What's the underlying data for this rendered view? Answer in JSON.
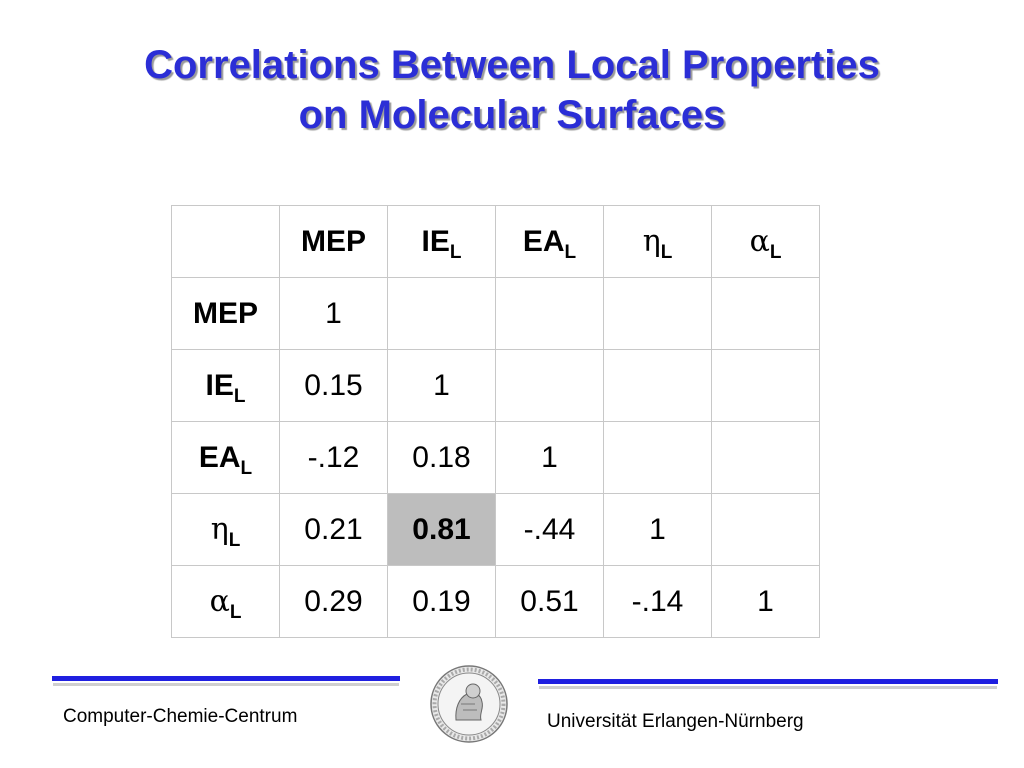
{
  "title": {
    "line1": "Correlations Between Local Properties",
    "line2": "on Molecular Surfaces"
  },
  "table": {
    "headers": [
      {
        "base": "",
        "sub": ""
      },
      {
        "base": "MEP",
        "sub": ""
      },
      {
        "base": "IE",
        "sub": "L"
      },
      {
        "base": "EA",
        "sub": "L"
      },
      {
        "base": "η",
        "sub": "L"
      },
      {
        "base": "α",
        "sub": "L"
      }
    ],
    "rows": [
      {
        "label": {
          "base": "MEP",
          "sub": ""
        },
        "cells": [
          "1",
          "",
          "",
          "",
          ""
        ]
      },
      {
        "label": {
          "base": "IE",
          "sub": "L"
        },
        "cells": [
          "0.15",
          "1",
          "",
          "",
          ""
        ]
      },
      {
        "label": {
          "base": "EA",
          "sub": "L"
        },
        "cells": [
          "-.12",
          "0.18",
          "1",
          "",
          ""
        ]
      },
      {
        "label": {
          "base": "η",
          "sub": "L"
        },
        "cells": [
          "0.21",
          "0.81",
          "-.44",
          "1",
          ""
        ]
      },
      {
        "label": {
          "base": "α",
          "sub": "L"
        },
        "cells": [
          "0.29",
          "0.19",
          "0.51",
          "-.14",
          "1"
        ]
      }
    ],
    "highlight_color": "#bdbdbd"
  },
  "footer": {
    "left": "Computer-Chemie-Centrum",
    "right": "Universität Erlangen-Nürnberg",
    "logo": "university-seal-icon"
  },
  "colors": {
    "title": "#2b2ed6",
    "bars": "#1f1fe0"
  }
}
